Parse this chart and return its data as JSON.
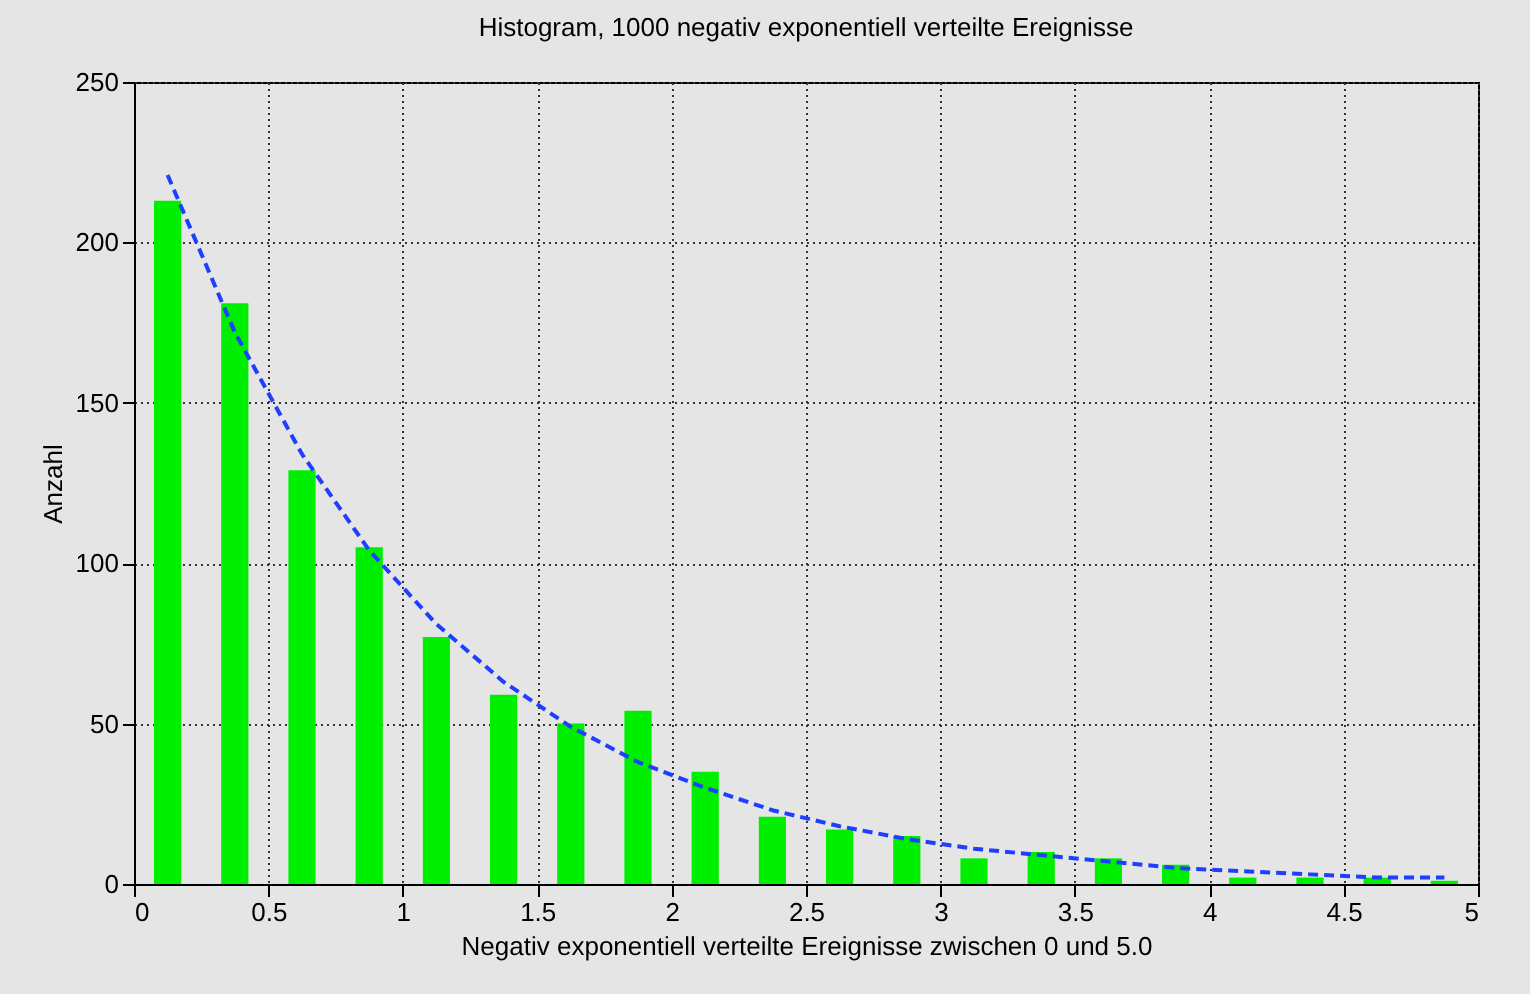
{
  "chart_data": {
    "type": "histogram",
    "title": "Histogram, 1000 negativ exponentiell verteilte Ereignisse",
    "xlabel": "Negativ exponentiell verteilte Ereignisse zwischen 0 und 5.0",
    "ylabel": "Anzahl",
    "bins": [
      0,
      0.25,
      0.5,
      0.75,
      1,
      1.25,
      1.5,
      1.75,
      2,
      2.25,
      2.5,
      2.75,
      3,
      3.25,
      3.5,
      3.75,
      4,
      4.25,
      4.5,
      4.75,
      5
    ],
    "series": [
      {
        "color": "#00ee00",
        "values": [
          213,
          181,
          129,
          105,
          77,
          59,
          50,
          54,
          35,
          21,
          17,
          15,
          8,
          10,
          8,
          6,
          2,
          2,
          2,
          1
        ]
      },
      {
        "type": "line",
        "color": "#1f3fff",
        "line_style": "dashed",
        "x": [
          0.125,
          0.375,
          0.625,
          0.875,
          1.125,
          1.375,
          1.625,
          1.875,
          2.125,
          2.375,
          2.625,
          2.875,
          3.125,
          3.375,
          3.625,
          3.875,
          4.125,
          4.375,
          4.625,
          4.875
        ],
        "values": [
          221,
          172,
          134,
          104,
          81,
          63,
          49,
          38,
          30,
          23,
          18,
          14,
          11,
          9,
          7,
          5,
          4,
          3,
          2,
          2
        ]
      }
    ],
    "xlim": [
      0,
      5
    ],
    "xticks": [
      0,
      0.5,
      1,
      1.5,
      2,
      2.5,
      3,
      3.5,
      4,
      4.5,
      5
    ],
    "ylim": [
      0,
      250
    ],
    "yticks": [
      0,
      50,
      100,
      150,
      200,
      250
    ],
    "grid": true
  }
}
